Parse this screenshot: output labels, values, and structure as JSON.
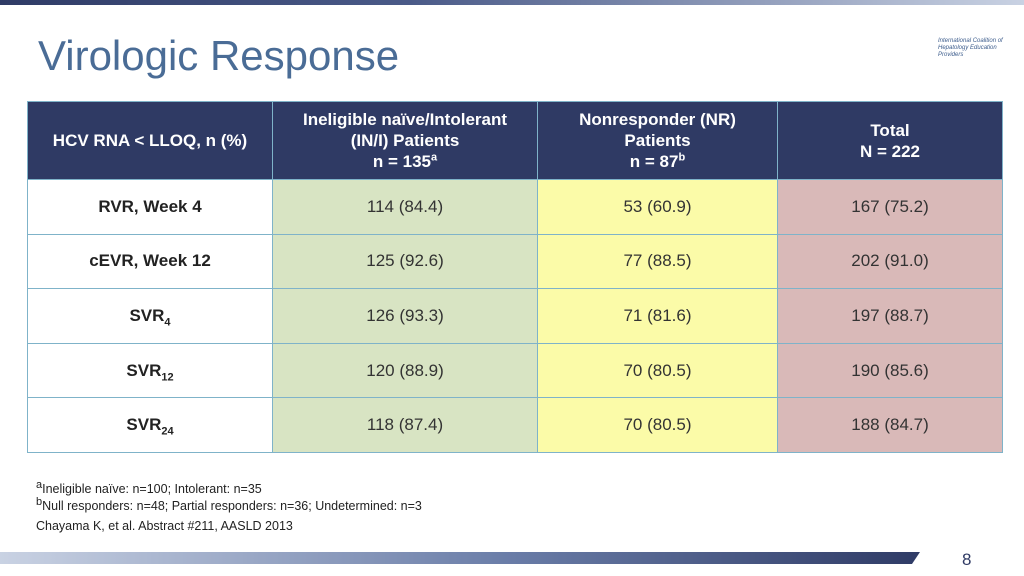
{
  "slide": {
    "title": "Virologic Response",
    "logo_line1": "International Coalition of",
    "logo_line2": "Hepatology Education Providers",
    "page_number": "8"
  },
  "table": {
    "header": {
      "col0": "HCV RNA < LLOQ, n (%)",
      "col1_line1": "Ineligible naïve/Intolerant",
      "col1_line2": "(IN/I) Patients",
      "col1_line3": "n = 135",
      "col1_sup": "a",
      "col2_line1": "Nonresponder (NR)",
      "col2_line2": "Patients",
      "col2_line3": "n = 87",
      "col2_sup": "b",
      "col3_line1": "Total",
      "col3_line2": "N = 222"
    },
    "rows": [
      {
        "label": "RVR, Week 4",
        "label_sub": "",
        "c1": "114 (84.4)",
        "c2": "53 (60.9)",
        "c3": "167 (75.2)"
      },
      {
        "label": "cEVR, Week 12",
        "label_sub": "",
        "c1": "125 (92.6)",
        "c2": "77 (88.5)",
        "c3": "202 (91.0)"
      },
      {
        "label": "SVR",
        "label_sub": "4",
        "c1": "126 (93.3)",
        "c2": "71 (81.6)",
        "c3": "197 (88.7)"
      },
      {
        "label": "SVR",
        "label_sub": "12",
        "c1": "120 (88.9)",
        "c2": "70 (80.5)",
        "c3": "190 (85.6)"
      },
      {
        "label": "SVR",
        "label_sub": "24",
        "c1": "118 (87.4)",
        "c2": "70 (80.5)",
        "c3": "188 (84.7)"
      }
    ]
  },
  "footnotes": {
    "a_marker": "a",
    "a_text": "Ineligible naïve: n=100; Intolerant: n=35",
    "b_marker": "b",
    "b_text": "Null responders: n=48; Partial responders: n=36; Undetermined: n=3",
    "citation": "Chayama K, et al. Abstract #211, AASLD 2013"
  },
  "colors": {
    "header_bg": "#2f3a64",
    "in_i_col": "#d8e4c3",
    "nr_col": "#fbfba8",
    "total_col": "#d9b9b8",
    "title": "#4a6c96"
  }
}
